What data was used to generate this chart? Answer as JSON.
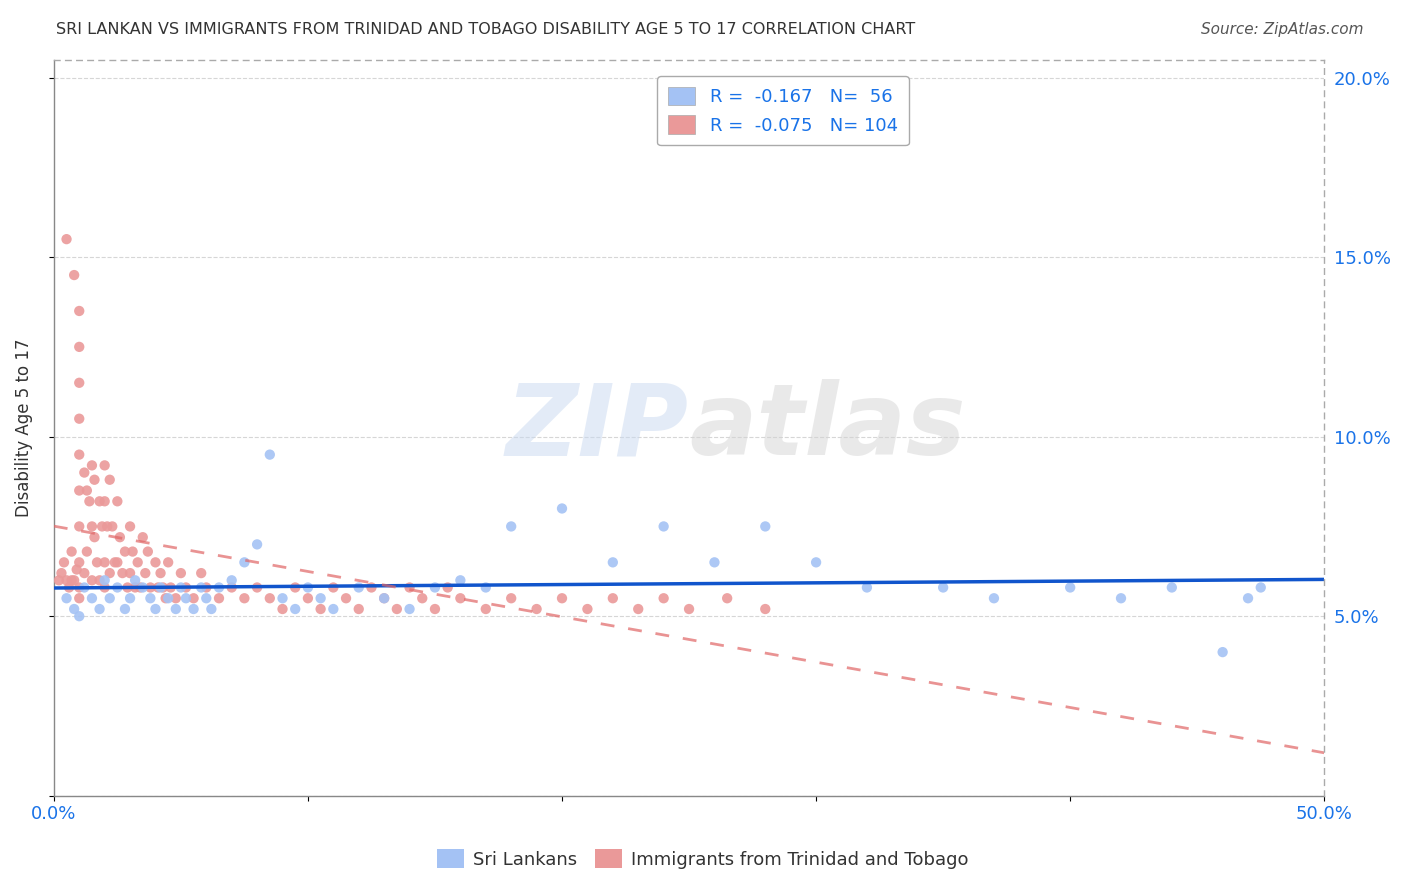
{
  "title": "SRI LANKAN VS IMMIGRANTS FROM TRINIDAD AND TOBAGO DISABILITY AGE 5 TO 17 CORRELATION CHART",
  "source": "Source: ZipAtlas.com",
  "ylabel": "Disability Age 5 to 17",
  "xlim": [
    0.0,
    0.5
  ],
  "ylim": [
    0.0,
    0.205
  ],
  "blue_R": -0.167,
  "blue_N": 56,
  "pink_R": -0.075,
  "pink_N": 104,
  "blue_color": "#a4c2f4",
  "pink_color": "#ea9999",
  "blue_line_color": "#1155cc",
  "pink_line_color": "#e06666",
  "legend_label_blue": "Sri Lankans",
  "legend_label_pink": "Immigrants from Trinidad and Tobago",
  "watermark_zip": "ZIP",
  "watermark_atlas": "atlas",
  "blue_x": [
    0.005,
    0.008,
    0.01,
    0.012,
    0.015,
    0.018,
    0.02,
    0.022,
    0.025,
    0.028,
    0.03,
    0.032,
    0.035,
    0.038,
    0.04,
    0.042,
    0.045,
    0.048,
    0.05,
    0.052,
    0.055,
    0.058,
    0.06,
    0.062,
    0.065,
    0.07,
    0.075,
    0.08,
    0.085,
    0.09,
    0.095,
    0.1,
    0.105,
    0.11,
    0.12,
    0.13,
    0.14,
    0.15,
    0.16,
    0.17,
    0.18,
    0.2,
    0.22,
    0.24,
    0.26,
    0.28,
    0.3,
    0.32,
    0.35,
    0.37,
    0.4,
    0.42,
    0.44,
    0.46,
    0.47,
    0.475
  ],
  "blue_y": [
    0.055,
    0.052,
    0.05,
    0.058,
    0.055,
    0.052,
    0.06,
    0.055,
    0.058,
    0.052,
    0.055,
    0.06,
    0.058,
    0.055,
    0.052,
    0.058,
    0.055,
    0.052,
    0.058,
    0.055,
    0.052,
    0.058,
    0.055,
    0.052,
    0.058,
    0.06,
    0.065,
    0.07,
    0.095,
    0.055,
    0.052,
    0.058,
    0.055,
    0.052,
    0.058,
    0.055,
    0.052,
    0.058,
    0.06,
    0.058,
    0.075,
    0.08,
    0.065,
    0.075,
    0.065,
    0.075,
    0.065,
    0.058,
    0.058,
    0.055,
    0.058,
    0.055,
    0.058,
    0.04,
    0.055,
    0.058
  ],
  "pink_x": [
    0.002,
    0.003,
    0.004,
    0.005,
    0.005,
    0.006,
    0.007,
    0.007,
    0.008,
    0.008,
    0.009,
    0.01,
    0.01,
    0.01,
    0.01,
    0.01,
    0.01,
    0.01,
    0.01,
    0.01,
    0.01,
    0.012,
    0.012,
    0.013,
    0.013,
    0.014,
    0.015,
    0.015,
    0.015,
    0.016,
    0.016,
    0.017,
    0.018,
    0.018,
    0.019,
    0.02,
    0.02,
    0.02,
    0.02,
    0.021,
    0.022,
    0.022,
    0.023,
    0.024,
    0.025,
    0.025,
    0.026,
    0.027,
    0.028,
    0.029,
    0.03,
    0.03,
    0.031,
    0.032,
    0.033,
    0.034,
    0.035,
    0.036,
    0.037,
    0.038,
    0.04,
    0.041,
    0.042,
    0.043,
    0.044,
    0.045,
    0.046,
    0.048,
    0.05,
    0.052,
    0.055,
    0.058,
    0.06,
    0.065,
    0.07,
    0.075,
    0.08,
    0.085,
    0.09,
    0.095,
    0.1,
    0.105,
    0.11,
    0.115,
    0.12,
    0.125,
    0.13,
    0.135,
    0.14,
    0.145,
    0.15,
    0.155,
    0.16,
    0.17,
    0.18,
    0.19,
    0.2,
    0.21,
    0.22,
    0.23,
    0.24,
    0.25,
    0.265,
    0.28
  ],
  "pink_y": [
    0.06,
    0.062,
    0.065,
    0.155,
    0.06,
    0.058,
    0.068,
    0.06,
    0.145,
    0.06,
    0.063,
    0.135,
    0.125,
    0.115,
    0.105,
    0.095,
    0.085,
    0.075,
    0.065,
    0.058,
    0.055,
    0.09,
    0.062,
    0.085,
    0.068,
    0.082,
    0.075,
    0.092,
    0.06,
    0.072,
    0.088,
    0.065,
    0.082,
    0.06,
    0.075,
    0.092,
    0.082,
    0.065,
    0.058,
    0.075,
    0.088,
    0.062,
    0.075,
    0.065,
    0.082,
    0.065,
    0.072,
    0.062,
    0.068,
    0.058,
    0.075,
    0.062,
    0.068,
    0.058,
    0.065,
    0.058,
    0.072,
    0.062,
    0.068,
    0.058,
    0.065,
    0.058,
    0.062,
    0.058,
    0.055,
    0.065,
    0.058,
    0.055,
    0.062,
    0.058,
    0.055,
    0.062,
    0.058,
    0.055,
    0.058,
    0.055,
    0.058,
    0.055,
    0.052,
    0.058,
    0.055,
    0.052,
    0.058,
    0.055,
    0.052,
    0.058,
    0.055,
    0.052,
    0.058,
    0.055,
    0.052,
    0.058,
    0.055,
    0.052,
    0.055,
    0.052,
    0.055,
    0.052,
    0.055,
    0.052,
    0.055,
    0.052,
    0.055,
    0.052
  ]
}
